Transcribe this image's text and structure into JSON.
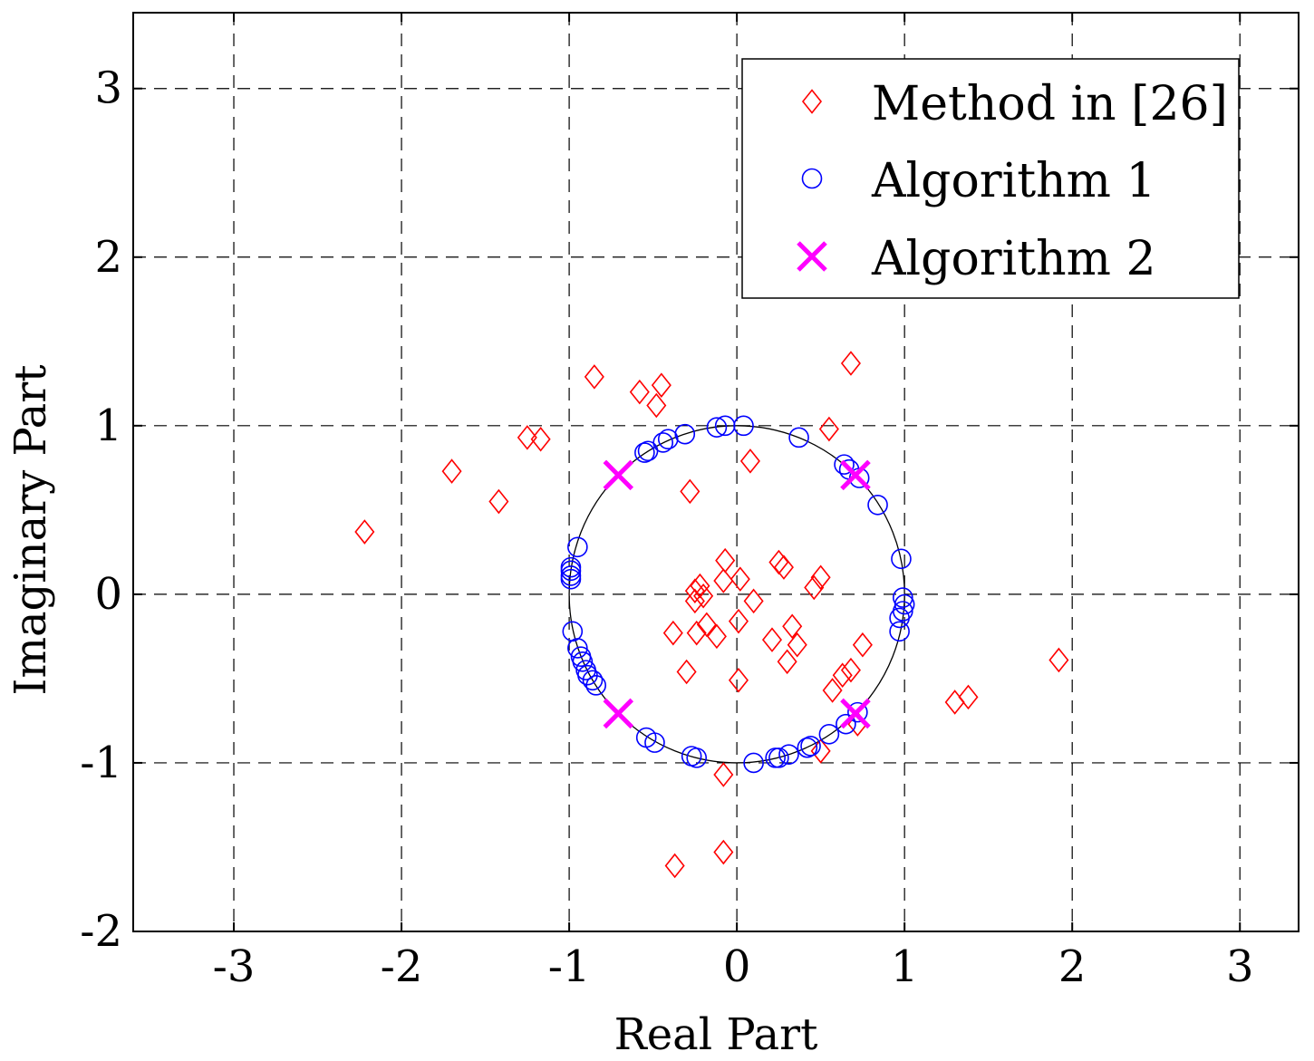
{
  "chart_data": {
    "type": "scatter",
    "xlabel": "Real Part",
    "ylabel": "Imaginary Part",
    "xlim": [
      -3.6,
      3.35
    ],
    "ylim": [
      -2,
      3.45
    ],
    "xticks": [
      -3,
      -2,
      -1,
      0,
      1,
      2,
      3
    ],
    "yticks": [
      -2,
      -1,
      0,
      1,
      2,
      3
    ],
    "xtick_labels": [
      "-3",
      "-2",
      "-1",
      "0",
      "1",
      "2",
      "3"
    ],
    "ytick_labels": [
      "-2",
      "-1",
      "0",
      "1",
      "2",
      "3"
    ],
    "grid": true,
    "grid_style": "dashed",
    "legend_position": "top-right",
    "unit_circle": {
      "center": [
        0,
        0
      ],
      "radius": 1,
      "color": "#000000"
    },
    "series": [
      {
        "name": "Method in [26]",
        "marker": "diamond",
        "color": "#ff0000",
        "points": [
          [
            -2.22,
            0.37
          ],
          [
            -1.7,
            0.73
          ],
          [
            -1.42,
            0.55
          ],
          [
            -1.25,
            0.93
          ],
          [
            -1.17,
            0.92
          ],
          [
            -0.85,
            1.29
          ],
          [
            -0.58,
            1.2
          ],
          [
            -0.45,
            1.24
          ],
          [
            -0.48,
            1.12
          ],
          [
            0.55,
            0.98
          ],
          [
            0.68,
            1.37
          ],
          [
            -0.28,
            0.61
          ],
          [
            0.08,
            0.79
          ],
          [
            -0.07,
            0.2
          ],
          [
            -0.22,
            0.05
          ],
          [
            -0.25,
            0.02
          ],
          [
            -0.08,
            0.08
          ],
          [
            0.02,
            0.09
          ],
          [
            0.25,
            0.19
          ],
          [
            0.28,
            0.16
          ],
          [
            0.5,
            0.1
          ],
          [
            0.46,
            0.04
          ],
          [
            -0.2,
            -0.01
          ],
          [
            -0.25,
            -0.04
          ],
          [
            0.1,
            -0.04
          ],
          [
            -0.38,
            -0.23
          ],
          [
            -0.24,
            -0.23
          ],
          [
            -0.12,
            -0.25
          ],
          [
            -0.18,
            -0.18
          ],
          [
            0.01,
            -0.16
          ],
          [
            0.33,
            -0.19
          ],
          [
            0.21,
            -0.27
          ],
          [
            0.36,
            -0.3
          ],
          [
            0.3,
            -0.4
          ],
          [
            0.75,
            -0.3
          ],
          [
            -0.3,
            -0.46
          ],
          [
            0.01,
            -0.51
          ],
          [
            0.68,
            -0.45
          ],
          [
            0.63,
            -0.48
          ],
          [
            0.57,
            -0.57
          ],
          [
            0.72,
            -0.77
          ],
          [
            0.5,
            -0.93
          ],
          [
            -0.08,
            -1.07
          ],
          [
            -0.08,
            -1.53
          ],
          [
            -0.37,
            -1.61
          ],
          [
            1.3,
            -0.64
          ],
          [
            1.38,
            -0.61
          ],
          [
            1.92,
            -0.39
          ]
        ]
      },
      {
        "name": "Algorithm 1",
        "marker": "circle",
        "color": "#0000ff",
        "points": [
          [
            -0.55,
            0.84
          ],
          [
            -0.53,
            0.85
          ],
          [
            -0.44,
            0.9
          ],
          [
            -0.41,
            0.92
          ],
          [
            -0.31,
            0.95
          ],
          [
            -0.12,
            0.99
          ],
          [
            -0.07,
            1.0
          ],
          [
            0.04,
            1.0
          ],
          [
            0.37,
            0.93
          ],
          [
            0.64,
            0.77
          ],
          [
            0.67,
            0.74
          ],
          [
            0.73,
            0.69
          ],
          [
            0.84,
            0.53
          ],
          [
            0.98,
            0.21
          ],
          [
            0.99,
            -0.02
          ],
          [
            1.0,
            -0.06
          ],
          [
            0.99,
            -0.1
          ],
          [
            0.97,
            -0.14
          ],
          [
            0.97,
            -0.22
          ],
          [
            0.72,
            -0.7
          ],
          [
            0.65,
            -0.77
          ],
          [
            0.55,
            -0.83
          ],
          [
            0.44,
            -0.9
          ],
          [
            0.42,
            -0.91
          ],
          [
            0.31,
            -0.95
          ],
          [
            0.25,
            -0.97
          ],
          [
            0.23,
            -0.97
          ],
          [
            0.1,
            -1.0
          ],
          [
            -0.24,
            -0.97
          ],
          [
            -0.27,
            -0.96
          ],
          [
            -0.49,
            -0.88
          ],
          [
            -0.54,
            -0.85
          ],
          [
            -0.84,
            -0.54
          ],
          [
            -0.86,
            -0.51
          ],
          [
            -0.89,
            -0.48
          ],
          [
            -0.9,
            -0.45
          ],
          [
            -0.92,
            -0.4
          ],
          [
            -0.93,
            -0.37
          ],
          [
            -0.95,
            -0.32
          ],
          [
            -0.98,
            -0.22
          ],
          [
            -0.99,
            0.09
          ],
          [
            -0.99,
            0.11
          ],
          [
            -0.99,
            0.14
          ],
          [
            -0.99,
            0.16
          ],
          [
            -0.95,
            0.28
          ]
        ]
      },
      {
        "name": "Algorithm 2",
        "marker": "x",
        "color": "#ff00ff",
        "points": [
          [
            -0.7071,
            0.7071
          ],
          [
            0.7071,
            0.7071
          ],
          [
            -0.7071,
            -0.7071
          ],
          [
            0.7071,
            -0.7071
          ]
        ]
      }
    ]
  }
}
